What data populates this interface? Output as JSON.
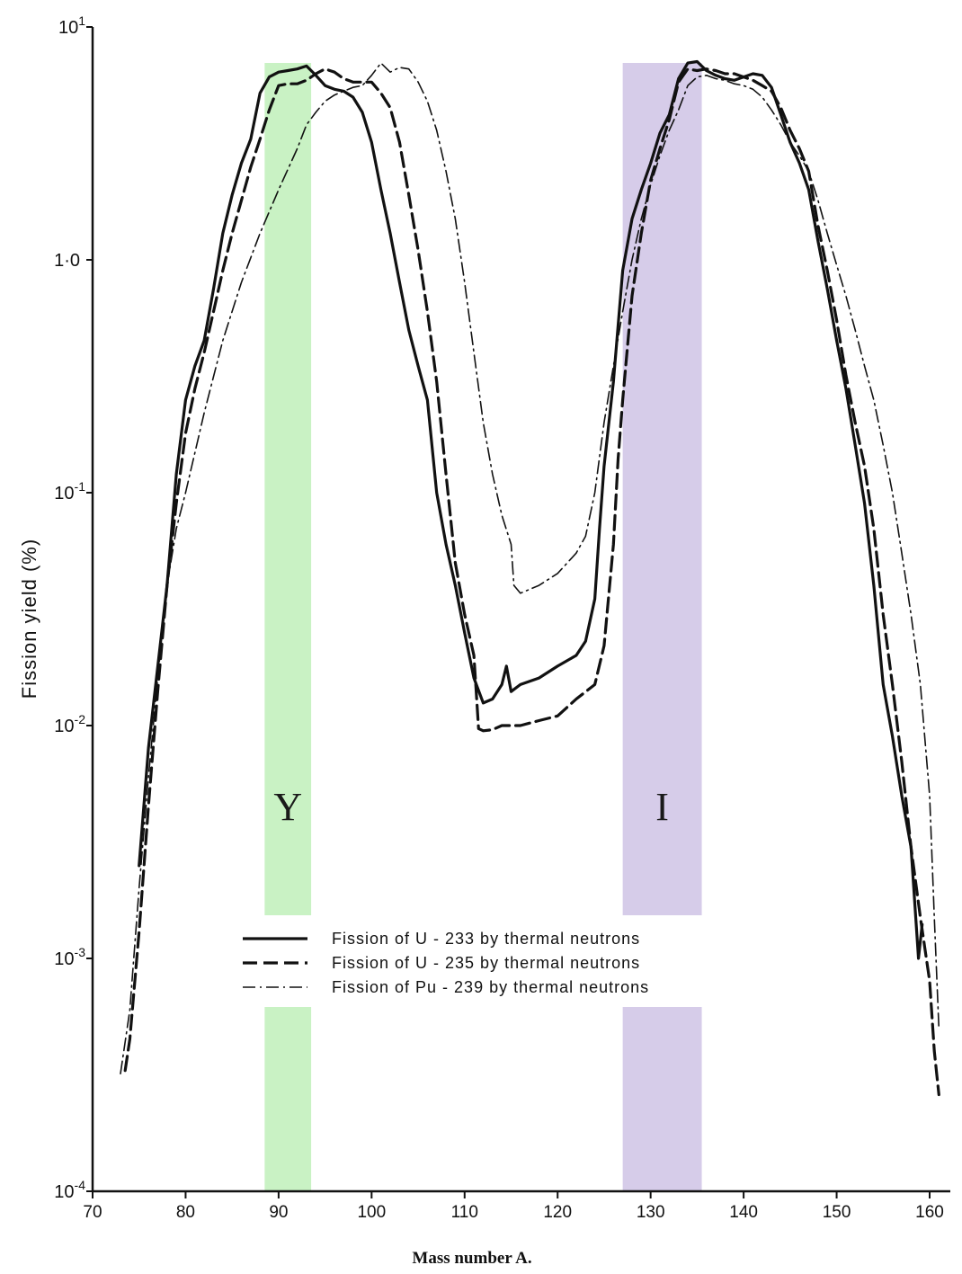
{
  "chart_data": {
    "type": "line",
    "xlabel": "Mass number A.",
    "ylabel": "Fission yield (%)",
    "xlim": [
      70,
      162
    ],
    "ylim": [
      0.0001,
      10
    ],
    "yscale": "log",
    "x_ticks": [
      "70",
      "80",
      "90",
      "100",
      "110",
      "120",
      "130",
      "140",
      "150",
      "160"
    ],
    "y_ticks": [
      {
        "value": 10,
        "base": "10",
        "exp": "1"
      },
      {
        "value": 1,
        "text": "1·0"
      },
      {
        "value": 0.1,
        "base": "10",
        "exp": "-1"
      },
      {
        "value": 0.01,
        "base": "10",
        "exp": "-2"
      },
      {
        "value": 0.001,
        "base": "10",
        "exp": "-3"
      },
      {
        "value": 0.0001,
        "base": "10",
        "exp": "-4"
      }
    ],
    "grid": false,
    "legend_position": "center",
    "bands": [
      {
        "label": "Y",
        "x_range": [
          88.5,
          93.5
        ],
        "color": "#c9f2c4"
      },
      {
        "label": "I",
        "x_range": [
          127,
          135.5
        ],
        "color": "#d6cce9"
      }
    ],
    "series": [
      {
        "name": "Fission of U-233 by thermal neutrons",
        "style": "solid",
        "points": [
          [
            75,
            0.0025
          ],
          [
            76,
            0.008
          ],
          [
            78,
            0.04
          ],
          [
            79,
            0.12
          ],
          [
            80,
            0.25
          ],
          [
            81,
            0.35
          ],
          [
            82,
            0.45
          ],
          [
            83,
            0.75
          ],
          [
            84,
            1.3
          ],
          [
            85,
            1.9
          ],
          [
            86,
            2.6
          ],
          [
            87,
            3.3
          ],
          [
            88,
            5.2
          ],
          [
            89,
            6.1
          ],
          [
            90,
            6.4
          ],
          [
            91,
            6.5
          ],
          [
            92,
            6.6
          ],
          [
            93,
            6.8
          ],
          [
            94,
            6.2
          ],
          [
            95,
            5.6
          ],
          [
            96,
            5.4
          ],
          [
            97,
            5.3
          ],
          [
            98,
            5.0
          ],
          [
            99,
            4.3
          ],
          [
            100,
            3.2
          ],
          [
            101,
            2.0
          ],
          [
            102,
            1.3
          ],
          [
            103,
            0.8
          ],
          [
            104,
            0.5
          ],
          [
            105,
            0.35
          ],
          [
            106,
            0.25
          ],
          [
            107,
            0.1
          ],
          [
            108,
            0.06
          ],
          [
            109,
            0.04
          ],
          [
            110,
            0.025
          ],
          [
            111,
            0.016
          ],
          [
            112,
            0.0125
          ],
          [
            113,
            0.013
          ],
          [
            114,
            0.015
          ],
          [
            114.5,
            0.018
          ],
          [
            115,
            0.014
          ],
          [
            116,
            0.015
          ],
          [
            118,
            0.016
          ],
          [
            120,
            0.018
          ],
          [
            122,
            0.02
          ],
          [
            123,
            0.023
          ],
          [
            124,
            0.035
          ],
          [
            124.5,
            0.07
          ],
          [
            125,
            0.13
          ],
          [
            126,
            0.3
          ],
          [
            127,
            0.9
          ],
          [
            128,
            1.5
          ],
          [
            129,
            2.0
          ],
          [
            130,
            2.6
          ],
          [
            131,
            3.5
          ],
          [
            132,
            4.2
          ],
          [
            133,
            6.0
          ],
          [
            134,
            7.0
          ],
          [
            135,
            7.1
          ],
          [
            136,
            6.5
          ],
          [
            137,
            6.2
          ],
          [
            138,
            6.0
          ],
          [
            139,
            5.9
          ],
          [
            140,
            6.1
          ],
          [
            141,
            6.3
          ],
          [
            142,
            6.2
          ],
          [
            143,
            5.5
          ],
          [
            144,
            4.2
          ],
          [
            145,
            3.2
          ],
          [
            146,
            2.6
          ],
          [
            147,
            2.0
          ],
          [
            148,
            1.2
          ],
          [
            149,
            0.75
          ],
          [
            150,
            0.45
          ],
          [
            151,
            0.28
          ],
          [
            152,
            0.16
          ],
          [
            153,
            0.09
          ],
          [
            154,
            0.04
          ],
          [
            155,
            0.015
          ],
          [
            156,
            0.009
          ],
          [
            157,
            0.005
          ],
          [
            158,
            0.003
          ],
          [
            158.8,
            0.001
          ],
          [
            159.2,
            0.0014
          ]
        ]
      },
      {
        "name": "Fission of U-235 by thermal neutrons",
        "style": "dashed",
        "points": [
          [
            73.5,
            0.00033
          ],
          [
            74,
            0.00045
          ],
          [
            75,
            0.0013
          ],
          [
            76,
            0.0045
          ],
          [
            77,
            0.014
          ],
          [
            78,
            0.04
          ],
          [
            79,
            0.09
          ],
          [
            80,
            0.18
          ],
          [
            81,
            0.28
          ],
          [
            82,
            0.4
          ],
          [
            83,
            0.6
          ],
          [
            84,
            0.9
          ],
          [
            85,
            1.3
          ],
          [
            86,
            1.8
          ],
          [
            87,
            2.5
          ],
          [
            88,
            3.3
          ],
          [
            89,
            4.4
          ],
          [
            90,
            5.6
          ],
          [
            91,
            5.7
          ],
          [
            92,
            5.7
          ],
          [
            93,
            5.9
          ],
          [
            94,
            6.3
          ],
          [
            95,
            6.6
          ],
          [
            96,
            6.4
          ],
          [
            97,
            6.0
          ],
          [
            98,
            5.8
          ],
          [
            99,
            5.8
          ],
          [
            100,
            5.8
          ],
          [
            101,
            5.2
          ],
          [
            102,
            4.5
          ],
          [
            103,
            3.2
          ],
          [
            104,
            1.9
          ],
          [
            105,
            1.1
          ],
          [
            106,
            0.6
          ],
          [
            107,
            0.3
          ],
          [
            108,
            0.12
          ],
          [
            109,
            0.05
          ],
          [
            110,
            0.03
          ],
          [
            111,
            0.02
          ],
          [
            111.5,
            0.0097
          ],
          [
            112,
            0.0095
          ],
          [
            113,
            0.0096
          ],
          [
            114,
            0.01
          ],
          [
            116,
            0.01
          ],
          [
            118,
            0.0105
          ],
          [
            120,
            0.011
          ],
          [
            122,
            0.013
          ],
          [
            124,
            0.015
          ],
          [
            125,
            0.022
          ],
          [
            126,
            0.06
          ],
          [
            126.5,
            0.14
          ],
          [
            127,
            0.25
          ],
          [
            128,
            0.7
          ],
          [
            129,
            1.3
          ],
          [
            130,
            2.2
          ],
          [
            131,
            3.0
          ],
          [
            132,
            4.0
          ],
          [
            133,
            5.8
          ],
          [
            134,
            6.6
          ],
          [
            135,
            6.5
          ],
          [
            136,
            6.6
          ],
          [
            137,
            6.5
          ],
          [
            138,
            6.3
          ],
          [
            139,
            6.3
          ],
          [
            140,
            6.1
          ],
          [
            141,
            5.9
          ],
          [
            142,
            5.6
          ],
          [
            143,
            5.3
          ],
          [
            144,
            4.5
          ],
          [
            145,
            3.6
          ],
          [
            146,
            3.0
          ],
          [
            147,
            2.4
          ],
          [
            148,
            1.4
          ],
          [
            149,
            0.9
          ],
          [
            150,
            0.55
          ],
          [
            151,
            0.32
          ],
          [
            152,
            0.2
          ],
          [
            153,
            0.13
          ],
          [
            154,
            0.07
          ],
          [
            155,
            0.03
          ],
          [
            156,
            0.015
          ],
          [
            157,
            0.007
          ],
          [
            158,
            0.003
          ],
          [
            159,
            0.0015
          ],
          [
            160,
            0.0008
          ],
          [
            160.5,
            0.0004
          ],
          [
            161,
            0.00026
          ]
        ]
      },
      {
        "name": "Fission of Pu-239 by thermal neutrons",
        "style": "dashdot",
        "points": [
          [
            73,
            0.00032
          ],
          [
            74,
            0.0006
          ],
          [
            75,
            0.002
          ],
          [
            76,
            0.006
          ],
          [
            77,
            0.016
          ],
          [
            78,
            0.04
          ],
          [
            79,
            0.07
          ],
          [
            80,
            0.1
          ],
          [
            82,
            0.22
          ],
          [
            84,
            0.45
          ],
          [
            86,
            0.8
          ],
          [
            88,
            1.3
          ],
          [
            90,
            2.0
          ],
          [
            92,
            3.0
          ],
          [
            93,
            3.8
          ],
          [
            94,
            4.3
          ],
          [
            95,
            4.8
          ],
          [
            96,
            5.1
          ],
          [
            97,
            5.3
          ],
          [
            98,
            5.5
          ],
          [
            99,
            5.6
          ],
          [
            100,
            6.2
          ],
          [
            101,
            7.0
          ],
          [
            102,
            6.4
          ],
          [
            103,
            6.7
          ],
          [
            104,
            6.6
          ],
          [
            105,
            5.8
          ],
          [
            106,
            4.8
          ],
          [
            107,
            3.6
          ],
          [
            108,
            2.4
          ],
          [
            109,
            1.5
          ],
          [
            110,
            0.8
          ],
          [
            111,
            0.4
          ],
          [
            112,
            0.2
          ],
          [
            113,
            0.12
          ],
          [
            114,
            0.08
          ],
          [
            115,
            0.06
          ],
          [
            115.3,
            0.04
          ],
          [
            116,
            0.037
          ],
          [
            118,
            0.04
          ],
          [
            120,
            0.045
          ],
          [
            122,
            0.055
          ],
          [
            123,
            0.065
          ],
          [
            124,
            0.1
          ],
          [
            125,
            0.2
          ],
          [
            126,
            0.35
          ],
          [
            127,
            0.6
          ],
          [
            128,
            1.0
          ],
          [
            129,
            1.5
          ],
          [
            130,
            2.1
          ],
          [
            131,
            2.8
          ],
          [
            132,
            3.6
          ],
          [
            133,
            4.4
          ],
          [
            134,
            5.6
          ],
          [
            135,
            6.1
          ],
          [
            136,
            6.2
          ],
          [
            137,
            6.0
          ],
          [
            138,
            5.9
          ],
          [
            139,
            5.7
          ],
          [
            140,
            5.6
          ],
          [
            141,
            5.4
          ],
          [
            142,
            5.0
          ],
          [
            143,
            4.4
          ],
          [
            144,
            3.8
          ],
          [
            145,
            3.2
          ],
          [
            146,
            2.8
          ],
          [
            147,
            2.4
          ],
          [
            148,
            1.8
          ],
          [
            149,
            1.3
          ],
          [
            150,
            0.95
          ],
          [
            151,
            0.7
          ],
          [
            152,
            0.5
          ],
          [
            153,
            0.35
          ],
          [
            154,
            0.25
          ],
          [
            155,
            0.16
          ],
          [
            156,
            0.1
          ],
          [
            157,
            0.055
          ],
          [
            158,
            0.03
          ],
          [
            159,
            0.015
          ],
          [
            160,
            0.005
          ],
          [
            160.5,
            0.0015
          ],
          [
            161,
            0.0005
          ]
        ]
      }
    ]
  }
}
